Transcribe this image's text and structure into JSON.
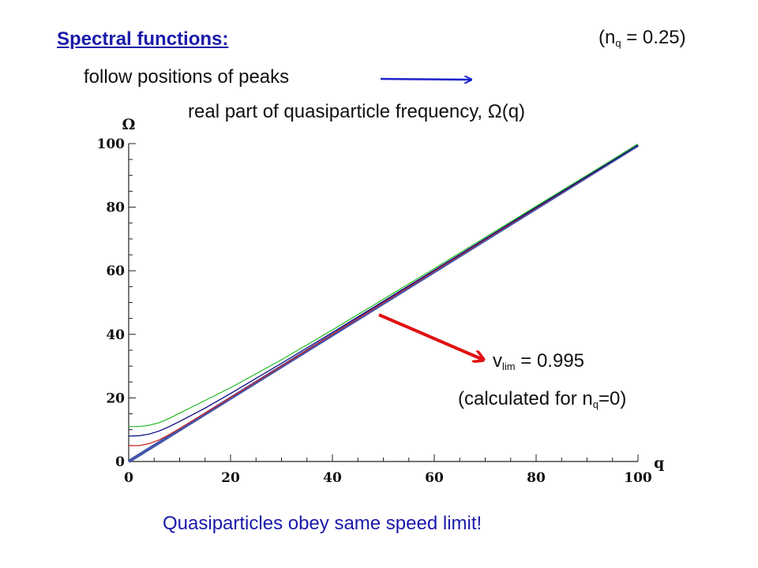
{
  "slide": {
    "title": "Spectral functions:",
    "nq_prefix": "(n",
    "nq_sub": "q",
    "nq_suffix": " = 0.25)",
    "follow_text": "follow positions of peaks",
    "real_part_text": "real part of quasiparticle frequency, Ω(q)",
    "vlim_prefix": "v",
    "vlim_sub": "lim",
    "vlim_suffix": " = 0.995",
    "calc_prefix": "(calculated for n",
    "calc_sub": "q",
    "calc_suffix": "=0)",
    "conclusion": "Quasiparticles obey same speed limit!",
    "colors": {
      "text_blue": "#1a1aaa",
      "arrow_blue": "#1a22cc",
      "arrow_red": "#e01010"
    }
  },
  "chart_data": {
    "type": "line",
    "xlabel": "q",
    "ylabel": "Ω",
    "xlim": [
      0,
      100
    ],
    "ylim": [
      0,
      100
    ],
    "xticks": [
      0,
      20,
      40,
      60,
      80,
      100
    ],
    "yticks": [
      0,
      20,
      40,
      60,
      80,
      100
    ],
    "xtick_labels": [
      "0",
      "20",
      "40",
      "60",
      "80",
      "100"
    ],
    "ytick_labels": [
      "0",
      "20",
      "40",
      "60",
      "80",
      "100"
    ],
    "grid": false,
    "series": [
      {
        "color": "#4455aa",
        "x": [
          0,
          100
        ],
        "y": [
          0,
          99.5
        ]
      },
      {
        "color": "#cc2222",
        "x": [
          0,
          2,
          4,
          6,
          8,
          10,
          15,
          20,
          30,
          40,
          60,
          80,
          100
        ],
        "y": [
          5,
          5,
          5.6,
          6.8,
          8.5,
          10.4,
          15.2,
          20.1,
          30,
          40,
          59.9,
          79.7,
          99.5
        ]
      },
      {
        "color": "#000080",
        "x": [
          0,
          2,
          4,
          6,
          8,
          10,
          15,
          20,
          30,
          40,
          60,
          80,
          100
        ],
        "y": [
          8,
          8.1,
          8.6,
          9.6,
          11,
          12.6,
          16.8,
          21.4,
          30.9,
          40.6,
          60.2,
          79.9,
          99.5
        ]
      },
      {
        "color": "#22bb22",
        "x": [
          0,
          2,
          4,
          6,
          8,
          10,
          15,
          20,
          30,
          40,
          60,
          80,
          100
        ],
        "y": [
          11,
          11,
          11.4,
          12.2,
          13.6,
          15.2,
          19.2,
          23.2,
          32,
          41.4,
          60.7,
          80.3,
          99.8
        ]
      }
    ]
  }
}
